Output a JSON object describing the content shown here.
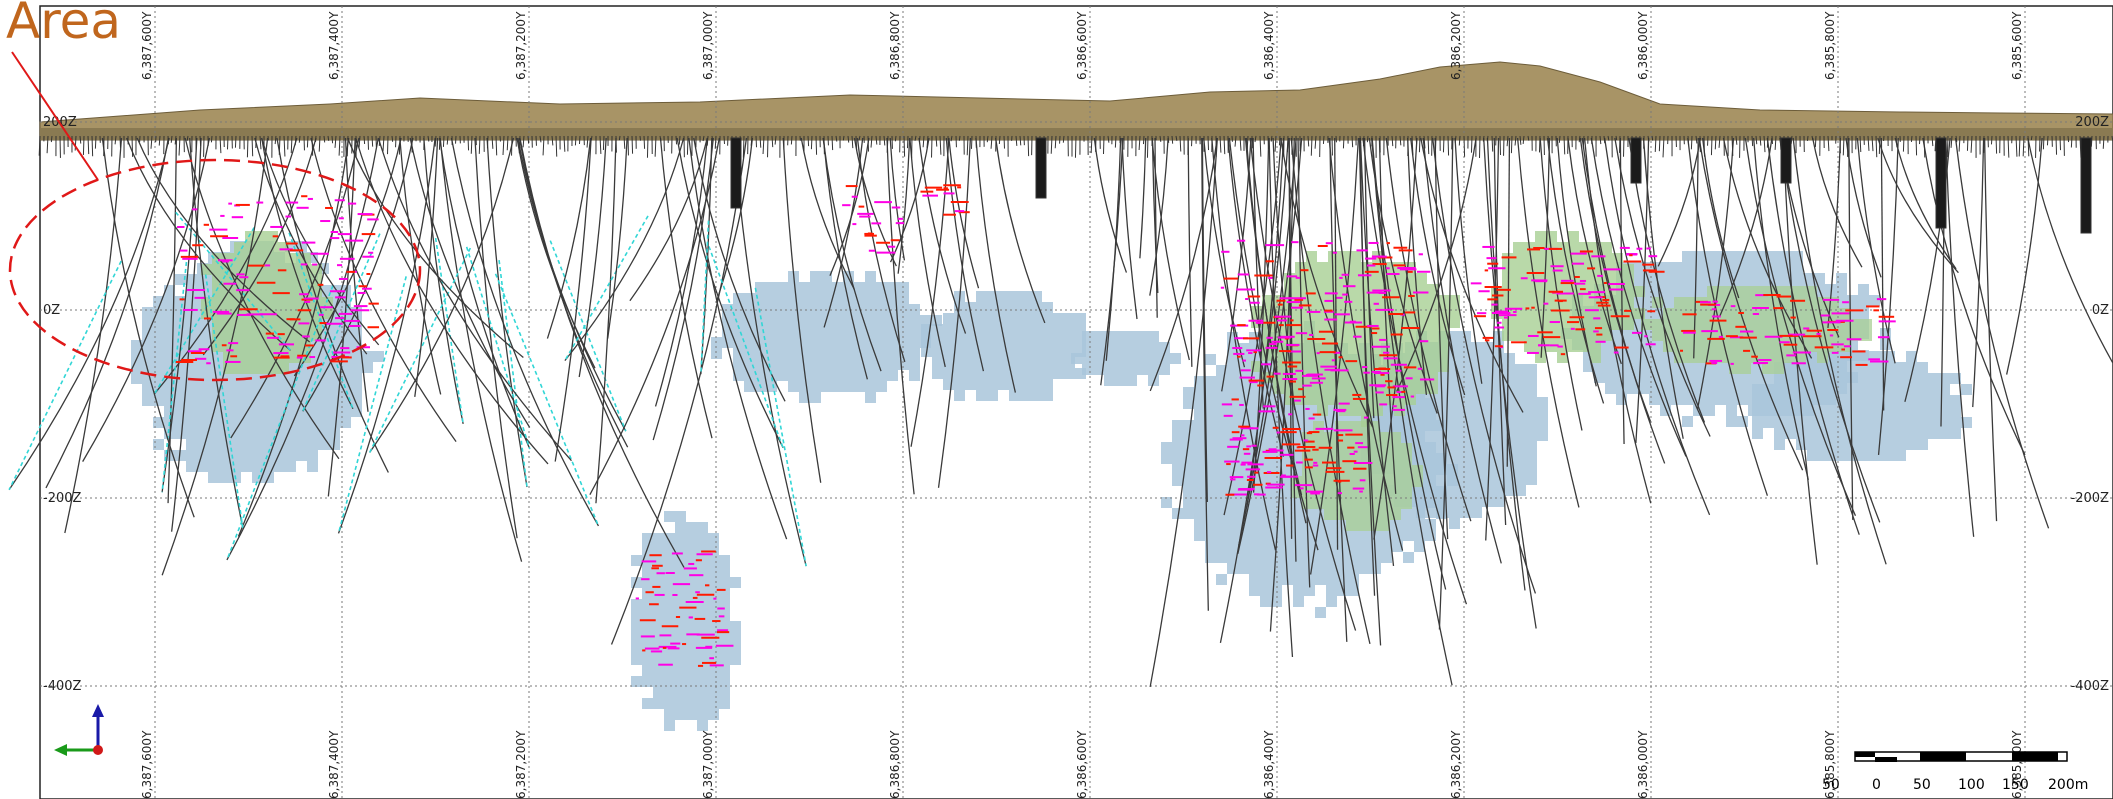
{
  "annotation": {
    "text": "Area",
    "color": "#c0661d",
    "ellipse_color": "#e01818"
  },
  "y_grid_labels": [
    "6,387,600Y",
    "6,387,400Y",
    "6,387,200Y",
    "6,387,000Y",
    "6,386,800Y",
    "6,386,600Y",
    "6,386,400Y",
    "6,386,200Y",
    "6,386,000Y",
    "6,385,800Y",
    "6,385,600Y"
  ],
  "z_grid_labels": [
    "200Z",
    "0Z",
    "-200Z",
    "-400Z"
  ],
  "scale_bar": {
    "labels": [
      "50",
      "0",
      "50",
      "100",
      "150",
      "200m"
    ]
  },
  "colors": {
    "terrain": "#a89466",
    "terrain_dark": "#6d5d3a",
    "block_blue": "#a9c6da",
    "block_green": "#a8cf94",
    "drillhole": "#3a3a3a",
    "assay_magenta": "#ff00e6",
    "assay_red": "#ff1a00",
    "trace_cyan": "#31d6d6",
    "grid": "#7a7a7a"
  },
  "orientation_icons": [
    "up-arrow-icon",
    "left-arrow-icon",
    "origin-dot-icon"
  ]
}
